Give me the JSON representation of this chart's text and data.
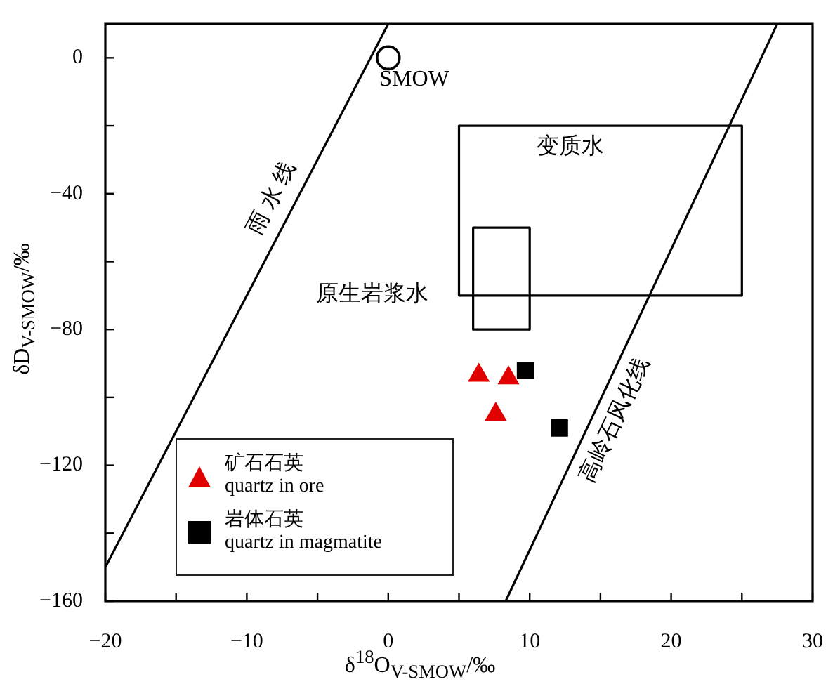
{
  "chart_data": {
    "type": "scatter",
    "xlabel": "δ$^{18}$O$_{V-SMOW}$/‰",
    "ylabel": "δD$_{V-SMOW}$/‰",
    "xlim": [
      -20,
      30
    ],
    "ylim": [
      -160,
      10
    ],
    "xticks": [
      -20,
      {
        "value": -15,
        "label": null
      },
      -10,
      {
        "value": -5,
        "label": null
      },
      0,
      {
        "value": 5,
        "label": null
      },
      10,
      {
        "value": 15,
        "label": null
      },
      20,
      {
        "value": 25,
        "label": null
      },
      30
    ],
    "yticks": [
      -160,
      {
        "value": -140,
        "label": null
      },
      -120,
      {
        "value": -100,
        "label": null
      },
      -80,
      {
        "value": -60,
        "label": null
      },
      -40,
      {
        "value": -20,
        "label": null
      },
      0
    ],
    "grid": false,
    "legend": "bottom left",
    "series": [
      {
        "name": "矿石石英\nquartz in ore",
        "color": "#e00000",
        "marker": "triangle",
        "x": [
          6.4,
          8.5,
          7.6
        ],
        "values": [
          -93.5,
          -94.3,
          -105
        ]
      },
      {
        "name": "岩体石英\nquartz in magmatite",
        "color": "#000000",
        "marker": "square",
        "x": [
          9.7,
          12.1
        ],
        "values": [
          -92,
          -109
        ]
      },
      {
        "color": "#000000",
        "marker": "circle",
        "x": [
          0
        ],
        "values": [
          0
        ]
      },
      {
        "type": "line",
        "name": "雨 水 线",
        "color": "#000000",
        "marker": "none",
        "x": [
          -20,
          0
        ],
        "values": [
          -150,
          10
        ]
      },
      {
        "type": "line",
        "name": "高岭石风化线",
        "color": "#000000",
        "marker": "none",
        "x": [
          8.3,
          27.5
        ],
        "values": [
          -160,
          10
        ]
      },
      {
        "type": "line",
        "color": "#000000",
        "marker": "none",
        "x": [
          5,
          25,
          25
        ],
        "values": [
          -20,
          -20,
          -70
        ]
      },
      {
        "type": "line",
        "color": "#000000",
        "marker": "none",
        "x": [
          5,
          5,
          25
        ],
        "values": [
          -20,
          -70,
          -70
        ]
      },
      {
        "type": "line",
        "color": "#000000",
        "marker": "none",
        "x": [
          6,
          10,
          10
        ],
        "values": [
          -50,
          -50,
          -80
        ]
      },
      {
        "type": "line",
        "color": "#000000",
        "marker": "none",
        "x": [
          6,
          6,
          10
        ],
        "values": [
          -50,
          -80,
          -80
        ]
      }
    ],
    "annotations": [
      "SMOW",
      "变质水",
      "原生岩浆水"
    ]
  }
}
